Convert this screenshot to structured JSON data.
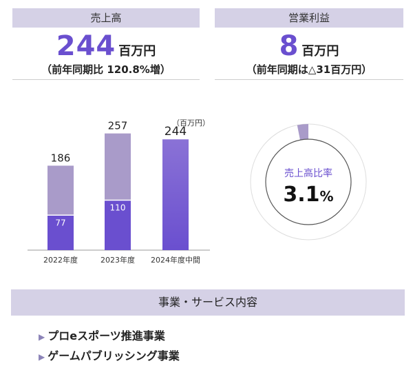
{
  "kpis": {
    "sales": {
      "header": "売上高",
      "value": "244",
      "unit": "百万円",
      "note": "（前年同期比 120.8%増）"
    },
    "profit": {
      "header": "営業利益",
      "value": "8",
      "unit": "百万円",
      "note": "（前年同期は△31百万円）"
    }
  },
  "chart_data": [
    {
      "type": "bar",
      "unit_label": "（百万円）",
      "categories": [
        "2022年度",
        "2023年度",
        "2024年度中間"
      ],
      "totals": [
        186,
        257,
        244
      ],
      "segments": [
        77,
        110,
        null
      ],
      "ylim": [
        0,
        300
      ],
      "colors": {
        "upper": "#a99bc9",
        "lower": "#6a4fcf",
        "top_gradient": "#8a72d6"
      }
    },
    {
      "type": "pie",
      "label": "売上高比率",
      "value_text": "3.1",
      "percent_sign": "%",
      "percent": 3.1,
      "colors": {
        "slice": "#a99bc9",
        "ring": "#dddddd"
      }
    }
  ],
  "business": {
    "header": "事業・サービス内容",
    "items": [
      {
        "icon": "triangle-bullet-icon",
        "label": "プロeスポーツ推進事業"
      },
      {
        "icon": "triangle-bullet-icon",
        "label": "ゲームパブリッシング事業"
      }
    ]
  }
}
